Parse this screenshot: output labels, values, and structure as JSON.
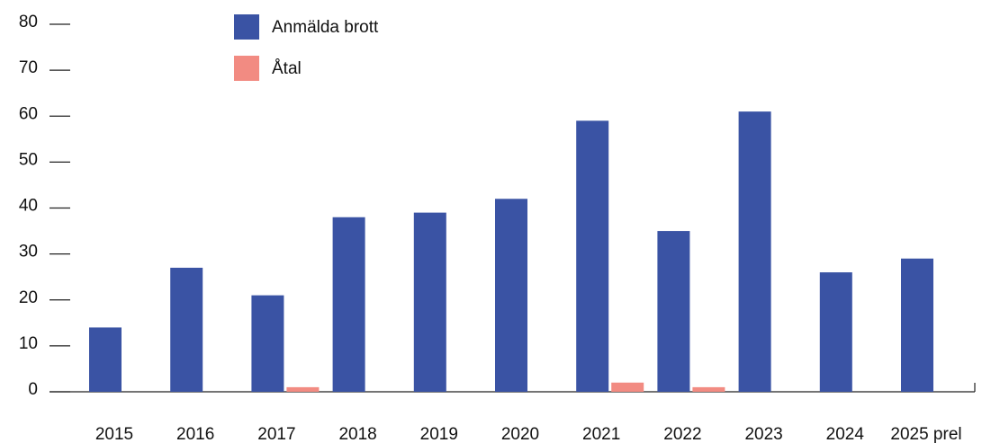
{
  "chart_data": {
    "type": "bar",
    "categories": [
      "2015",
      "2016",
      "2017",
      "2018",
      "2019",
      "2020",
      "2021",
      "2022",
      "2023",
      "2024",
      "2025 prel"
    ],
    "series": [
      {
        "name": "Anmälda brott",
        "color": "#3a53a4",
        "values": [
          14,
          27,
          21,
          38,
          39,
          42,
          59,
          35,
          61,
          26,
          29
        ]
      },
      {
        "name": "Åtal",
        "color": "#f28b82",
        "values": [
          0,
          0,
          1,
          0,
          0,
          0,
          2,
          1,
          0,
          0,
          0
        ]
      }
    ],
    "ylim": [
      0,
      80
    ],
    "yticks": [
      0,
      10,
      20,
      30,
      40,
      50,
      60,
      70,
      80
    ]
  }
}
